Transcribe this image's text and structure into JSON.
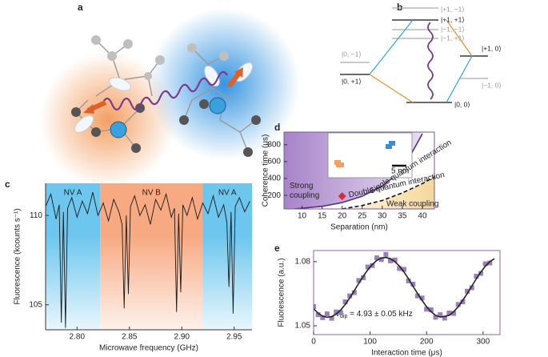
{
  "panel_labels": [
    "a",
    "b",
    "c",
    "d",
    "e"
  ],
  "level_diagram": {
    "labels": [
      "|+1, −1⟩",
      "|+1, +1⟩",
      "|−1, −1⟩",
      "|−1, +1⟩",
      "|0, −1⟩",
      "|+1, 0⟩",
      "|0, +1⟩",
      "|−1, 0⟩",
      "|0, 0⟩"
    ]
  },
  "chart_data": [
    {
      "type": "line",
      "xlabel": "Microwave frequency (GHz)",
      "ylabel": "Fluorescence (kcounts s⁻¹)",
      "x": [
        2.77,
        2.775,
        2.78,
        2.783,
        2.785,
        2.787,
        2.789,
        2.791,
        2.795,
        2.8,
        2.805,
        2.81,
        2.815,
        2.82,
        2.825,
        2.83,
        2.835,
        2.84,
        2.843,
        2.845,
        2.847,
        2.849,
        2.851,
        2.855,
        2.86,
        2.865,
        2.87,
        2.875,
        2.88,
        2.885,
        2.89,
        2.893,
        2.895,
        2.897,
        2.899,
        2.901,
        2.905,
        2.91,
        2.915,
        2.92,
        2.925,
        2.93,
        2.935,
        2.94,
        2.943,
        2.945,
        2.947,
        2.949,
        2.951,
        2.955,
        2.96,
        2.965
      ],
      "series": [
        {
          "color": "#1a1a1a",
          "values": [
            110.5,
            111.2,
            109.8,
            110.6,
            104.0,
            110.2,
            103.7,
            110.4,
            111.0,
            109.9,
            110.8,
            110.1,
            111.3,
            110.0,
            110.7,
            109.7,
            110.9,
            110.2,
            109.5,
            104.8,
            110.0,
            105.6,
            110.5,
            111.1,
            110.0,
            110.6,
            109.5,
            110.9,
            110.3,
            111.2,
            109.9,
            110.4,
            104.6,
            110.1,
            105.7,
            110.6,
            110.0,
            111.0,
            109.8,
            110.7,
            110.1,
            111.1,
            109.9,
            110.6,
            109.6,
            106.0,
            110.2,
            104.5,
            110.5,
            111.0,
            110.2,
            110.8
          ]
        }
      ],
      "xlim": [
        2.77,
        2.967
      ],
      "ylim": [
        103.6,
        111.8
      ],
      "xticks": [
        {
          "value": 2.8,
          "label": "2.80"
        },
        2.85,
        {
          "value": 2.9,
          "label": "2.90"
        },
        2.95
      ],
      "yticks": [
        105,
        110
      ],
      "regions": [
        {
          "label": "NV A",
          "from": 2.77,
          "to": 2.822,
          "color": "#6cc6ee"
        },
        {
          "label": "NV B",
          "from": 2.822,
          "to": 2.92,
          "color": "#f7a981"
        },
        {
          "label": "NV A",
          "from": 2.92,
          "to": 2.967,
          "color": "#6cc6ee"
        }
      ]
    },
    {
      "type": "line",
      "xlabel": "Separation (nm)",
      "ylabel": "Coherence time (μs)",
      "xlim": [
        5.5,
        43
      ],
      "ylim": [
        40,
        950
      ],
      "xticks": [
        10,
        15,
        20,
        25,
        30,
        35,
        40
      ],
      "yticks": [
        200,
        400,
        600,
        800
      ],
      "series": [
        {
          "name": "Single quantum interaction",
          "color": "#5a2d82",
          "linestyle": "solid",
          "x": [
            8,
            15,
            20,
            25,
            30,
            35,
            40
          ],
          "values": [
            40,
            70,
            115,
            190,
            310,
            500,
            930
          ]
        },
        {
          "name": "Double quantum interaction",
          "color": "#111111",
          "linestyle": "dashed",
          "x": [
            20,
            25,
            30,
            35,
            40,
            43
          ],
          "values": [
            40,
            80,
            140,
            230,
            340,
            420
          ]
        }
      ],
      "region_labels": [
        [
          "Strong",
          "coupling"
        ],
        [
          "Weak coupling"
        ]
      ],
      "marker": {
        "x": 20,
        "y": 190,
        "color": "#d62d3a"
      },
      "inset_label": "5 nm"
    },
    {
      "type": "scatter",
      "xlabel": "Interaction time (μs)",
      "ylabel": "Fluorescence (a.u.)",
      "xlim": [
        0,
        330
      ],
      "ylim": [
        1.0459,
        1.0852
      ],
      "xticks": [
        0,
        100,
        200,
        300
      ],
      "yticks": [
        {
          "value": 1.05,
          "label": "1.05"
        },
        {
          "value": 1.08,
          "label": "1.08"
        }
      ],
      "annotation": {
        "symbol": "ν",
        "subscript": "dip",
        "text": " = 4.93 ± 0.05 kHz"
      },
      "series": [
        {
          "type": "scatter",
          "color": "#9b7fb8",
          "x": [
            0,
            8,
            16,
            24,
            32,
            40,
            48,
            56,
            64,
            72,
            80,
            88,
            96,
            104,
            112,
            120,
            128,
            136,
            144,
            152,
            160,
            168,
            176,
            184,
            192,
            200,
            208,
            216,
            224,
            232,
            240,
            248,
            256,
            264,
            272,
            280,
            288,
            296,
            304,
            312
          ],
          "values": [
            1.059,
            1.0552,
            1.0538,
            1.0556,
            1.0535,
            1.0565,
            1.0562,
            1.0612,
            1.064,
            1.0655,
            1.0712,
            1.0725,
            1.0775,
            1.0782,
            1.0818,
            1.081,
            1.0834,
            1.0804,
            1.0808,
            1.0768,
            1.0764,
            1.071,
            1.0695,
            1.064,
            1.063,
            1.0578,
            1.0575,
            1.054,
            1.0552,
            1.0536,
            1.056,
            1.0558,
            1.06,
            1.0612,
            1.0662,
            1.0678,
            1.0732,
            1.0745,
            1.079,
            1.0794
          ]
        },
        {
          "type": "line",
          "color": "#222222",
          "x": [
            0,
            8,
            16,
            24,
            32,
            40,
            48,
            56,
            64,
            72,
            80,
            88,
            96,
            104,
            112,
            120,
            128,
            136,
            144,
            152,
            160,
            168,
            176,
            184,
            192,
            200,
            208,
            216,
            224,
            232,
            240,
            248,
            256,
            264,
            272,
            280,
            288,
            296,
            304,
            312,
            320
          ],
          "values": [
            1.058,
            1.0559,
            1.0545,
            1.054,
            1.0543,
            1.0555,
            1.0574,
            1.06,
            1.063,
            1.0664,
            1.0699,
            1.0732,
            1.0762,
            1.0787,
            1.0806,
            1.0817,
            1.082,
            1.0814,
            1.08,
            1.0779,
            1.0752,
            1.072,
            1.0685,
            1.0651,
            1.0619,
            1.0589,
            1.0566,
            1.0549,
            1.0541,
            1.0544,
            1.0549,
            1.0566,
            1.0589,
            1.0619,
            1.0651,
            1.0685,
            1.072,
            1.0751,
            1.0779,
            1.08,
            1.0814
          ]
        }
      ]
    }
  ]
}
